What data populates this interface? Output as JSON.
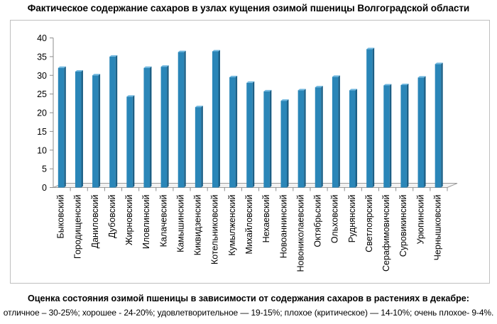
{
  "title": "Фактическое содержание сахаров в узлах кущения озимой пшеницы Волгоградской области",
  "footnote": {
    "heading": "Оценка состояния озимой пшеницы в зависимости от содержания сахаров в растениях в декабре:",
    "text": "отличное – 30-25%;  хорошее - 24-20%; удовлетворительное — 19-15%; плохое (критическое) — 14-10%; очень плохое- 9-4%."
  },
  "chart_data": {
    "type": "bar",
    "title": "Фактическое содержание сахаров в узлах кущения озимой пшеницы Волгоградской области",
    "xlabel": "",
    "ylabel": "",
    "ylim": [
      0,
      40
    ],
    "yticks": [
      0,
      5,
      10,
      15,
      20,
      25,
      30,
      35,
      40
    ],
    "grid": false,
    "legend": "none",
    "bar_color": "#2a86b8",
    "categories": [
      "Быковский",
      "Городищенский",
      "Даниловский",
      "Дубовский",
      "Жирновский",
      "Иловлинский",
      "Калачевский",
      "Камышинский",
      "Киквидзенский",
      "Котельниковский",
      "Кумылженский",
      "Михайловский",
      "Нехаевский",
      "Новоаннинский",
      "Новониколаевский",
      "Октябрьский",
      "Ольховский",
      "Руднянский",
      "Светлоярский",
      "Серафимовичский",
      "Суровикинский",
      "Урюпинский",
      "Чернышковский"
    ],
    "values": [
      32.0,
      31.0,
      30.0,
      35.0,
      24.3,
      32.0,
      32.3,
      36.2,
      21.5,
      36.4,
      29.5,
      28.0,
      25.7,
      23.2,
      26.0,
      26.8,
      29.6,
      26.0,
      37.0,
      27.3,
      27.4,
      29.4,
      33.0
    ]
  }
}
